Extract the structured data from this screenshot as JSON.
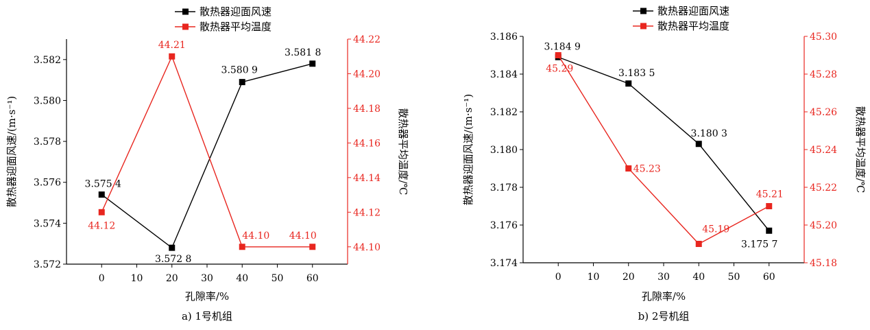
{
  "colors": {
    "speed": "#000000",
    "temp": "#e8261f",
    "axis": "#000000"
  },
  "chart_data": [
    {
      "type": "line",
      "caption": "a) 1号机组",
      "xlabel": "孔隙率/%",
      "ylabel_left": "散热器迎面风速/(m·s⁻¹)",
      "ylabel_right": "散热器平均温度/℃",
      "xlim": [
        -10,
        70
      ],
      "xticks": [
        0,
        10,
        20,
        30,
        40,
        50,
        60
      ],
      "ylim_left": [
        3.572,
        3.583
      ],
      "yticks_left": [
        3.572,
        3.574,
        3.576,
        3.578,
        3.58,
        3.582
      ],
      "ytick_labels_left": [
        "3.572",
        "3.574",
        "3.576",
        "3.578",
        "3.580",
        "3.582"
      ],
      "ylim_right": [
        44.09,
        44.22
      ],
      "yticks_right": [
        44.1,
        44.12,
        44.14,
        44.16,
        44.18,
        44.2,
        44.22
      ],
      "ytick_labels_right": [
        "44.10",
        "44.12",
        "44.14",
        "44.16",
        "44.18",
        "44.20",
        "44.22"
      ],
      "legend": [
        "散热器迎面风速",
        "散热器平均温度"
      ],
      "series": [
        {
          "name": "散热器迎面风速",
          "axis": "left",
          "x": [
            0,
            20,
            40,
            60
          ],
          "values": [
            3.5754,
            3.5728,
            3.5809,
            3.5818
          ],
          "labels": [
            "3.575 4",
            "3.572 8",
            "3.580 9",
            "3.581 8"
          ]
        },
        {
          "name": "散热器平均温度",
          "axis": "right",
          "x": [
            0,
            20,
            40,
            60
          ],
          "values": [
            44.12,
            44.21,
            44.1,
            44.1
          ],
          "labels": [
            "44.12",
            "44.21",
            "44.10",
            "44.10"
          ]
        }
      ]
    },
    {
      "type": "line",
      "caption": "b) 2号机组",
      "xlabel": "孔隙率/%",
      "ylabel_left": "散热器迎面风速/(m·s⁻¹)",
      "ylabel_right": "散热器平均温度/℃",
      "xlim": [
        -10,
        70
      ],
      "xticks": [
        0,
        10,
        20,
        30,
        40,
        50,
        60
      ],
      "ylim_left": [
        3.174,
        3.186
      ],
      "yticks_left": [
        3.174,
        3.176,
        3.178,
        3.18,
        3.182,
        3.184,
        3.186
      ],
      "ytick_labels_left": [
        "3.174",
        "3.176",
        "3.178",
        "3.180",
        "3.182",
        "3.184",
        "3.186"
      ],
      "ylim_right": [
        45.18,
        45.3
      ],
      "yticks_right": [
        45.18,
        45.2,
        45.22,
        45.24,
        45.26,
        45.28,
        45.3
      ],
      "ytick_labels_right": [
        "45.18",
        "45.20",
        "45.22",
        "45.24",
        "45.26",
        "45.28",
        "45.30"
      ],
      "legend": [
        "散热器迎面风速",
        "散热器平均温度"
      ],
      "series": [
        {
          "name": "散热器迎面风速",
          "axis": "left",
          "x": [
            0,
            20,
            40,
            60
          ],
          "values": [
            3.1849,
            3.1835,
            3.1803,
            3.1757
          ],
          "labels": [
            "3.184 9",
            "3.183 5",
            "3.180 3",
            "3.175 7"
          ]
        },
        {
          "name": "散热器平均温度",
          "axis": "right",
          "x": [
            0,
            20,
            40,
            60
          ],
          "values": [
            45.29,
            45.23,
            45.19,
            45.21
          ],
          "labels": [
            "45.29",
            "45.23",
            "45.19",
            "45.21"
          ]
        }
      ]
    }
  ]
}
